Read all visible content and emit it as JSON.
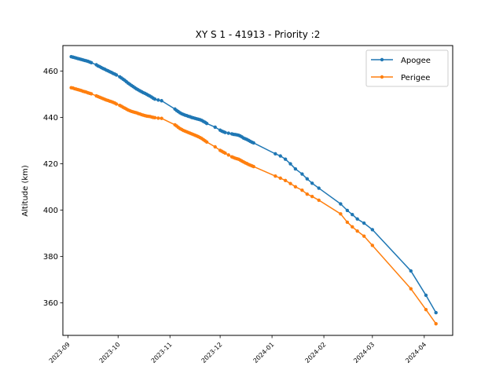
{
  "chart_data": {
    "type": "line",
    "title": "XY S 1 - 41913 - Priority :2",
    "xlabel": "",
    "ylabel": "Altitude (km)",
    "xlim": [
      "2023-08-29",
      "2024-04-18"
    ],
    "ylim": [
      346,
      471
    ],
    "x_ticks": [
      "2023-09",
      "2023-10",
      "2023-11",
      "2023-12",
      "2024-01",
      "2024-02",
      "2024-03",
      "2024-04"
    ],
    "y_ticks": [
      360,
      380,
      400,
      420,
      440,
      460
    ],
    "legend_position": "top-right",
    "grid": false,
    "series": [
      {
        "name": "Apogee",
        "color": "#1f77b4",
        "points": [
          [
            "2023-09-03",
            466.2
          ],
          [
            "2023-09-04",
            466.0
          ],
          [
            "2023-09-05",
            465.8
          ],
          [
            "2023-09-06",
            465.6
          ],
          [
            "2023-09-07",
            465.4
          ],
          [
            "2023-09-08",
            465.2
          ],
          [
            "2023-09-09",
            465.0
          ],
          [
            "2023-09-10",
            464.8
          ],
          [
            "2023-09-11",
            464.6
          ],
          [
            "2023-09-12",
            464.4
          ],
          [
            "2023-09-13",
            464.2
          ],
          [
            "2023-09-14",
            463.9
          ],
          [
            "2023-09-15",
            463.6
          ],
          [
            "2023-09-18",
            462.7
          ],
          [
            "2023-09-19",
            462.2
          ],
          [
            "2023-09-20",
            461.9
          ],
          [
            "2023-09-21",
            461.5
          ],
          [
            "2023-09-22",
            461.1
          ],
          [
            "2023-09-23",
            460.8
          ],
          [
            "2023-09-24",
            460.4
          ],
          [
            "2023-09-25",
            460.1
          ],
          [
            "2023-09-26",
            459.7
          ],
          [
            "2023-09-27",
            459.4
          ],
          [
            "2023-09-28",
            459.0
          ],
          [
            "2023-09-29",
            458.7
          ],
          [
            "2023-09-30",
            458.3
          ],
          [
            "2023-10-02",
            457.5
          ],
          [
            "2023-10-03",
            457.0
          ],
          [
            "2023-10-04",
            456.5
          ],
          [
            "2023-10-05",
            456.0
          ],
          [
            "2023-10-06",
            455.4
          ],
          [
            "2023-10-07",
            454.8
          ],
          [
            "2023-10-08",
            454.3
          ],
          [
            "2023-10-09",
            453.8
          ],
          [
            "2023-10-10",
            453.3
          ],
          [
            "2023-10-11",
            452.8
          ],
          [
            "2023-10-12",
            452.3
          ],
          [
            "2023-10-13",
            451.9
          ],
          [
            "2023-10-14",
            451.5
          ],
          [
            "2023-10-15",
            451.1
          ],
          [
            "2023-10-16",
            450.7
          ],
          [
            "2023-10-17",
            450.4
          ],
          [
            "2023-10-18",
            450.0
          ],
          [
            "2023-10-19",
            449.6
          ],
          [
            "2023-10-20",
            449.2
          ],
          [
            "2023-10-21",
            448.8
          ],
          [
            "2023-10-22",
            448.3
          ],
          [
            "2023-10-23",
            447.9
          ],
          [
            "2023-10-25",
            447.5
          ],
          [
            "2023-10-27",
            447.2
          ],
          [
            "2023-11-04",
            443.6
          ],
          [
            "2023-11-05",
            443.0
          ],
          [
            "2023-11-06",
            442.5
          ],
          [
            "2023-11-07",
            442.0
          ],
          [
            "2023-11-08",
            441.6
          ],
          [
            "2023-11-09",
            441.3
          ],
          [
            "2023-11-10",
            441.0
          ],
          [
            "2023-11-11",
            440.8
          ],
          [
            "2023-11-12",
            440.5
          ],
          [
            "2023-11-13",
            440.3
          ],
          [
            "2023-11-14",
            440.0
          ],
          [
            "2023-11-15",
            439.8
          ],
          [
            "2023-11-16",
            439.6
          ],
          [
            "2023-11-17",
            439.4
          ],
          [
            "2023-11-18",
            439.2
          ],
          [
            "2023-11-19",
            439.0
          ],
          [
            "2023-11-20",
            438.7
          ],
          [
            "2023-11-21",
            438.3
          ],
          [
            "2023-11-22",
            437.9
          ],
          [
            "2023-11-23",
            437.4
          ],
          [
            "2023-11-28",
            435.8
          ],
          [
            "2023-12-01",
            434.5
          ],
          [
            "2023-12-02",
            434.1
          ],
          [
            "2023-12-03",
            433.8
          ],
          [
            "2023-12-04",
            433.5
          ],
          [
            "2023-12-06",
            433.2
          ],
          [
            "2023-12-08",
            432.9
          ],
          [
            "2023-12-09",
            432.7
          ],
          [
            "2023-12-10",
            432.6
          ],
          [
            "2023-12-11",
            432.5
          ],
          [
            "2023-12-12",
            432.3
          ],
          [
            "2023-12-13",
            432.0
          ],
          [
            "2023-12-14",
            431.6
          ],
          [
            "2023-12-15",
            431.1
          ],
          [
            "2023-12-16",
            430.8
          ],
          [
            "2023-12-17",
            430.5
          ],
          [
            "2023-12-18",
            430.1
          ],
          [
            "2023-12-19",
            429.7
          ],
          [
            "2023-12-20",
            429.3
          ],
          [
            "2023-12-21",
            429.0
          ],
          [
            "2024-01-03",
            424.3
          ],
          [
            "2024-01-06",
            423.4
          ],
          [
            "2024-01-09",
            422.0
          ],
          [
            "2024-01-12",
            420.0
          ],
          [
            "2024-01-15",
            417.8
          ],
          [
            "2024-01-19",
            415.6
          ],
          [
            "2024-01-22",
            413.5
          ],
          [
            "2024-01-25",
            411.6
          ],
          [
            "2024-01-29",
            409.5
          ],
          [
            "2024-02-11",
            402.7
          ],
          [
            "2024-02-15",
            399.9
          ],
          [
            "2024-02-18",
            398.1
          ],
          [
            "2024-02-21",
            396.2
          ],
          [
            "2024-02-25",
            394.4
          ],
          [
            "2024-03-01",
            391.6
          ],
          [
            "2024-03-24",
            373.8
          ],
          [
            "2024-04-02",
            363.3
          ],
          [
            "2024-04-08",
            355.8
          ]
        ]
      },
      {
        "name": "Perigee",
        "color": "#ff7f0e",
        "points": [
          [
            "2023-09-03",
            452.8
          ],
          [
            "2023-09-04",
            452.7
          ],
          [
            "2023-09-05",
            452.4
          ],
          [
            "2023-09-06",
            452.2
          ],
          [
            "2023-09-07",
            452.0
          ],
          [
            "2023-09-08",
            451.8
          ],
          [
            "2023-09-09",
            451.6
          ],
          [
            "2023-09-10",
            451.3
          ],
          [
            "2023-09-11",
            451.1
          ],
          [
            "2023-09-12",
            450.9
          ],
          [
            "2023-09-13",
            450.6
          ],
          [
            "2023-09-14",
            450.4
          ],
          [
            "2023-09-15",
            450.2
          ],
          [
            "2023-09-18",
            449.3
          ],
          [
            "2023-09-19",
            449.0
          ],
          [
            "2023-09-20",
            448.7
          ],
          [
            "2023-09-21",
            448.4
          ],
          [
            "2023-09-22",
            448.1
          ],
          [
            "2023-09-23",
            447.8
          ],
          [
            "2023-09-24",
            447.5
          ],
          [
            "2023-09-25",
            447.3
          ],
          [
            "2023-09-26",
            447.0
          ],
          [
            "2023-09-27",
            446.8
          ],
          [
            "2023-09-28",
            446.5
          ],
          [
            "2023-09-29",
            446.2
          ],
          [
            "2023-09-30",
            445.8
          ],
          [
            "2023-10-02",
            445.2
          ],
          [
            "2023-10-03",
            444.8
          ],
          [
            "2023-10-04",
            444.4
          ],
          [
            "2023-10-05",
            444.0
          ],
          [
            "2023-10-06",
            443.6
          ],
          [
            "2023-10-07",
            443.2
          ],
          [
            "2023-10-08",
            442.9
          ],
          [
            "2023-10-09",
            442.6
          ],
          [
            "2023-10-10",
            442.4
          ],
          [
            "2023-10-11",
            442.2
          ],
          [
            "2023-10-12",
            442.0
          ],
          [
            "2023-10-13",
            441.7
          ],
          [
            "2023-10-14",
            441.5
          ],
          [
            "2023-10-15",
            441.2
          ],
          [
            "2023-10-16",
            441.0
          ],
          [
            "2023-10-17",
            440.8
          ],
          [
            "2023-10-18",
            440.6
          ],
          [
            "2023-10-19",
            440.5
          ],
          [
            "2023-10-20",
            440.4
          ],
          [
            "2023-10-21",
            440.2
          ],
          [
            "2023-10-22",
            440.0
          ],
          [
            "2023-10-23",
            439.9
          ],
          [
            "2023-10-25",
            439.7
          ],
          [
            "2023-10-27",
            439.6
          ],
          [
            "2023-11-04",
            436.8
          ],
          [
            "2023-11-05",
            436.3
          ],
          [
            "2023-11-06",
            435.7
          ],
          [
            "2023-11-07",
            435.2
          ],
          [
            "2023-11-08",
            434.8
          ],
          [
            "2023-11-09",
            434.4
          ],
          [
            "2023-11-10",
            434.1
          ],
          [
            "2023-11-11",
            433.8
          ],
          [
            "2023-11-12",
            433.5
          ],
          [
            "2023-11-13",
            433.2
          ],
          [
            "2023-11-14",
            432.9
          ],
          [
            "2023-11-15",
            432.6
          ],
          [
            "2023-11-16",
            432.3
          ],
          [
            "2023-11-17",
            432.0
          ],
          [
            "2023-11-18",
            431.7
          ],
          [
            "2023-11-19",
            431.3
          ],
          [
            "2023-11-20",
            430.9
          ],
          [
            "2023-11-21",
            430.4
          ],
          [
            "2023-11-22",
            429.9
          ],
          [
            "2023-11-23",
            429.4
          ],
          [
            "2023-11-28",
            427.3
          ],
          [
            "2023-12-01",
            425.8
          ],
          [
            "2023-12-02",
            425.4
          ],
          [
            "2023-12-03",
            425.0
          ],
          [
            "2023-12-04",
            424.6
          ],
          [
            "2023-12-06",
            423.8
          ],
          [
            "2023-12-08",
            423.0
          ],
          [
            "2023-12-09",
            422.7
          ],
          [
            "2023-12-10",
            422.4
          ],
          [
            "2023-12-11",
            422.2
          ],
          [
            "2023-12-12",
            422.0
          ],
          [
            "2023-12-13",
            421.6
          ],
          [
            "2023-12-14",
            421.2
          ],
          [
            "2023-12-15",
            420.8
          ],
          [
            "2023-12-16",
            420.4
          ],
          [
            "2023-12-17",
            420.1
          ],
          [
            "2023-12-18",
            419.7
          ],
          [
            "2023-12-19",
            419.4
          ],
          [
            "2023-12-20",
            419.1
          ],
          [
            "2023-12-21",
            418.8
          ],
          [
            "2024-01-03",
            414.7
          ],
          [
            "2024-01-06",
            413.8
          ],
          [
            "2024-01-09",
            412.8
          ],
          [
            "2024-01-12",
            411.5
          ],
          [
            "2024-01-15",
            410.1
          ],
          [
            "2024-01-19",
            408.6
          ],
          [
            "2024-01-22",
            406.9
          ],
          [
            "2024-01-25",
            405.9
          ],
          [
            "2024-01-29",
            404.3
          ],
          [
            "2024-02-11",
            398.4
          ],
          [
            "2024-02-15",
            394.8
          ],
          [
            "2024-02-18",
            392.8
          ],
          [
            "2024-02-21",
            391.0
          ],
          [
            "2024-02-25",
            388.8
          ],
          [
            "2024-03-01",
            384.8
          ],
          [
            "2024-03-24",
            366.1
          ],
          [
            "2024-04-02",
            357.1
          ],
          [
            "2024-04-08",
            351.0
          ]
        ]
      }
    ]
  }
}
